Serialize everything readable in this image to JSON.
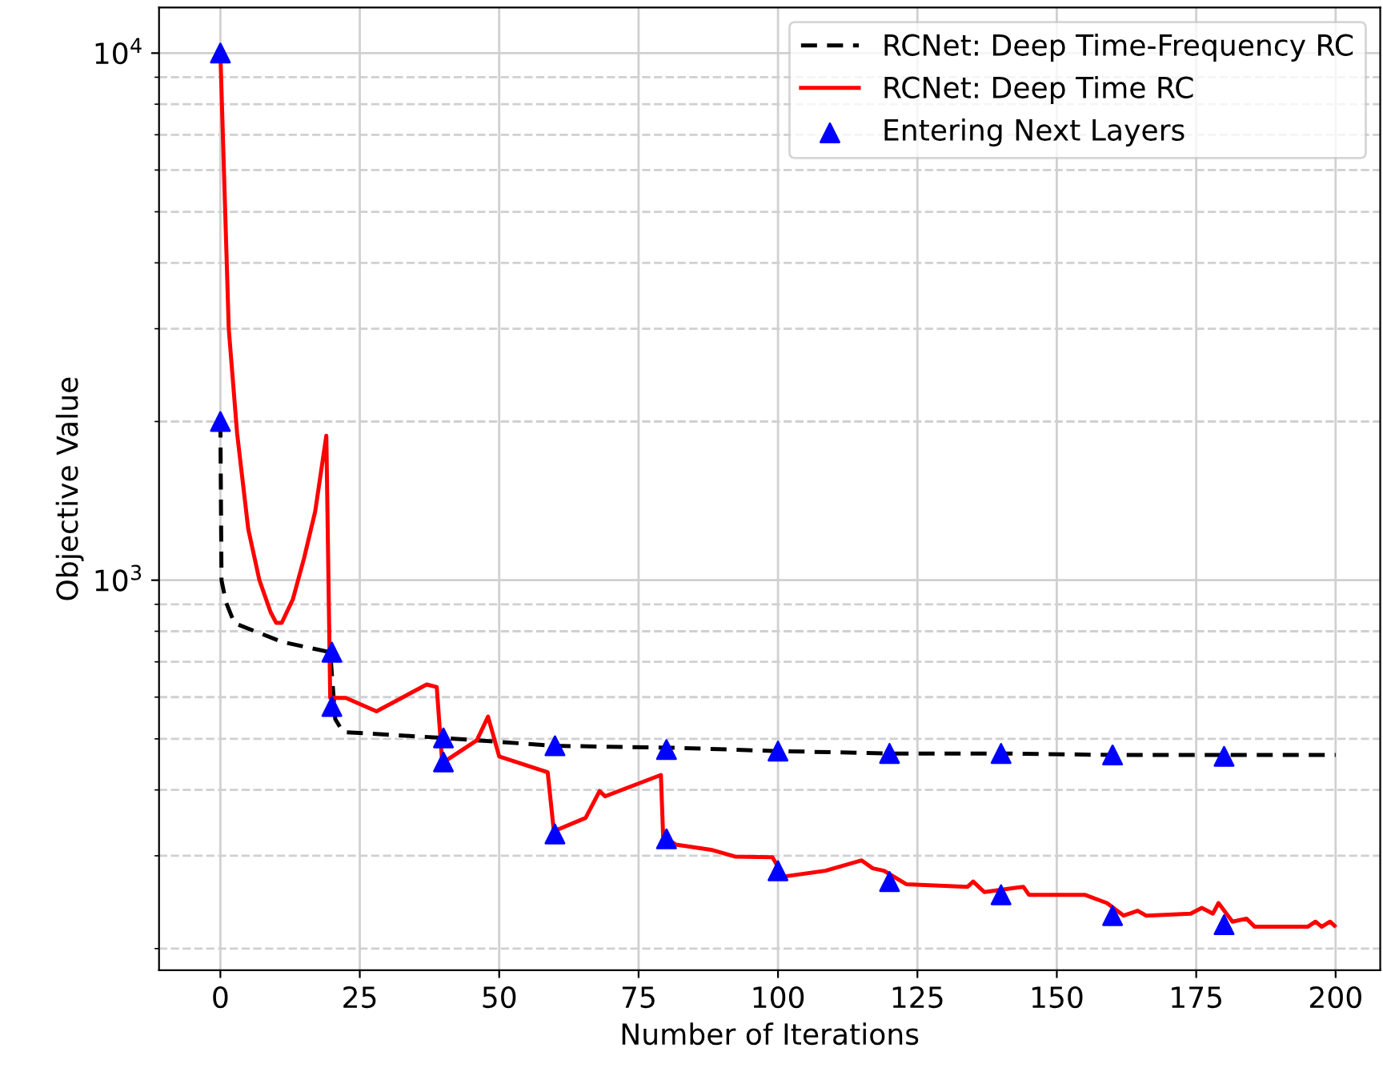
{
  "chart_data": {
    "type": "line",
    "xlabel": "Number of Iterations",
    "ylabel": "Objective Value",
    "log": "y",
    "xlim": [
      -11,
      208
    ],
    "ylim": [
      182,
      12200
    ],
    "xticks": [
      0,
      25,
      50,
      75,
      100,
      125,
      150,
      175,
      200
    ],
    "yticks": [
      {
        "value": 200,
        "label": null
      },
      {
        "value": 300,
        "label": null
      },
      {
        "value": 400,
        "label": null
      },
      {
        "value": 500,
        "label": null
      },
      {
        "value": 600,
        "label": null
      },
      {
        "value": 700,
        "label": null
      },
      {
        "value": 800,
        "label": null
      },
      {
        "value": 900,
        "label": null
      },
      {
        "value": 1000,
        "label": "10$^{3}$"
      },
      {
        "value": 2000,
        "label": null
      },
      {
        "value": 3000,
        "label": null
      },
      {
        "value": 4000,
        "label": null
      },
      {
        "value": 5000,
        "label": null
      },
      {
        "value": 6000,
        "label": null
      },
      {
        "value": 7000,
        "label": null
      },
      {
        "value": 8000,
        "label": null
      },
      {
        "value": 9000,
        "label": null
      },
      {
        "value": 10000,
        "label": "10$^{4}$"
      }
    ],
    "grid": true,
    "legend": "top right",
    "series": [
      {
        "name": "RCNet: Deep Time-Frequency RC",
        "color": "#000000",
        "line_style": "dashed",
        "marker": "none",
        "x": [
          0,
          0.2,
          1,
          2.5,
          11,
          19.7,
          20.6,
          22,
          40,
          60,
          81,
          100,
          120,
          141,
          160,
          200
        ],
        "values": [
          2000,
          1000,
          909,
          829,
          764,
          730,
          545,
          515,
          502,
          485,
          481,
          474,
          469,
          469,
          466,
          466
        ]
      },
      {
        "name": "RCNet: Deep Time RC",
        "color": "#ff0000",
        "line_style": "solid",
        "marker": "none",
        "x": [
          0,
          1.5,
          3,
          5,
          7,
          9,
          10,
          11,
          13,
          15,
          17,
          19,
          19.7,
          20,
          22.5,
          28,
          37,
          38.8,
          39.7,
          40.5,
          46,
          48,
          50,
          58.7,
          59.8,
          65.5,
          68,
          69,
          79,
          79.4,
          81.7,
          88,
          92.3,
          99,
          101,
          108.5,
          115,
          117,
          119,
          123,
          134,
          135,
          137,
          144,
          145,
          155,
          159,
          162,
          164.5,
          166,
          174,
          176,
          178,
          179,
          181.5,
          184,
          185.5,
          195,
          196.4,
          197.5,
          199,
          199.8
        ],
        "values": [
          10000,
          3000,
          1900,
          1250,
          1000,
          870,
          830,
          830,
          920,
          1100,
          1350,
          1880,
          598,
          598,
          598,
          564,
          634,
          627,
          463,
          455,
          497,
          551,
          463,
          432,
          334,
          354,
          398,
          389,
          427,
          327,
          315,
          308,
          299,
          298,
          274,
          281,
          294,
          284,
          281,
          265,
          262,
          268,
          256,
          262,
          253,
          253,
          244,
          231,
          236,
          231,
          233,
          239,
          233,
          244,
          225,
          228,
          220,
          220,
          225,
          220,
          225,
          221
        ]
      },
      {
        "name": "Entering Next Layers",
        "type": "scatter",
        "color": "#0000ff",
        "marker": "triangle",
        "x": [
          0,
          0,
          20,
          20,
          40,
          40,
          60,
          60,
          80,
          80,
          100,
          100,
          120,
          120,
          140,
          140,
          160,
          160,
          180,
          180
        ],
        "values": [
          10000,
          2000,
          730,
          576,
          502,
          452,
          485,
          330,
          477,
          323,
          474,
          281,
          469,
          268,
          469,
          253,
          466,
          231,
          463,
          222
        ]
      }
    ]
  }
}
